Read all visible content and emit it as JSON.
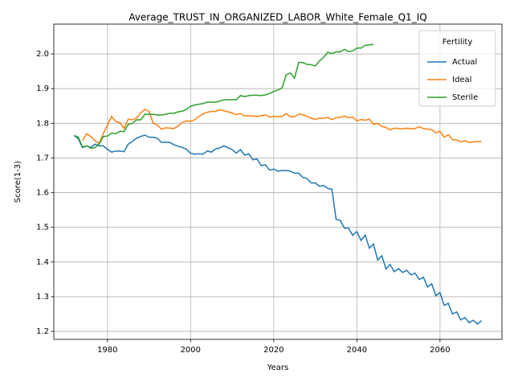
{
  "chart_data": {
    "type": "line",
    "title": "Average_TRUST_IN_ORGANIZED_LABOR_White_Female_Q1_IQ",
    "x_label": "Years",
    "y_label": "Score(1-3)",
    "legend_title": "Fertility",
    "legend": "upper right",
    "grid": true,
    "x": [
      1972,
      1973,
      1974,
      1975,
      1976,
      1977,
      1978,
      1979,
      1980,
      1981,
      1982,
      1983,
      1984,
      1985,
      1986,
      1987,
      1988,
      1989,
      1990,
      1991,
      1992,
      1993,
      1994,
      1995,
      1996,
      1997,
      1998,
      1999,
      2000,
      2001,
      2002,
      2003,
      2004,
      2005,
      2006,
      2007,
      2008,
      2009,
      2010,
      2011,
      2012,
      2013,
      2014,
      2015,
      2016,
      2017,
      2018,
      2019,
      2020,
      2021,
      2022,
      2023,
      2024,
      2025,
      2026,
      2027,
      2028,
      2029,
      2030,
      2031,
      2032,
      2033,
      2034,
      2035,
      2036,
      2037,
      2038,
      2039,
      2040,
      2041,
      2042,
      2043,
      2044,
      2045,
      2046,
      2047,
      2048,
      2049,
      2050,
      2051,
      2052,
      2053,
      2054,
      2055,
      2056,
      2057,
      2058,
      2059,
      2060,
      2061,
      2062,
      2063,
      2064,
      2065,
      2066,
      2067,
      2068,
      2069,
      2070
    ],
    "series": [
      {
        "name": "Actual",
        "color": "#1f77b4",
        "values": [
          1.765,
          1.755,
          1.73,
          1.735,
          1.73,
          1.74,
          1.735,
          1.735,
          1.725,
          1.717,
          1.72,
          1.72,
          1.718,
          1.74,
          1.748,
          1.757,
          1.762,
          1.766,
          1.76,
          1.76,
          1.757,
          1.745,
          1.745,
          1.745,
          1.738,
          1.734,
          1.731,
          1.725,
          1.714,
          1.711,
          1.712,
          1.711,
          1.72,
          1.717,
          1.726,
          1.729,
          1.735,
          1.73,
          1.724,
          1.714,
          1.724,
          1.708,
          1.712,
          1.695,
          1.697,
          1.678,
          1.68,
          1.665,
          1.668,
          1.662,
          1.664,
          1.664,
          1.662,
          1.656,
          1.656,
          1.644,
          1.641,
          1.628,
          1.628,
          1.618,
          1.621,
          1.612,
          1.61,
          1.523,
          1.52,
          1.498,
          1.498,
          1.477,
          1.488,
          1.462,
          1.478,
          1.44,
          1.452,
          1.406,
          1.418,
          1.38,
          1.393,
          1.372,
          1.381,
          1.37,
          1.376,
          1.363,
          1.368,
          1.35,
          1.356,
          1.328,
          1.337,
          1.303,
          1.312,
          1.275,
          1.281,
          1.25,
          1.256,
          1.233,
          1.24,
          1.225,
          1.232,
          1.221,
          1.231
        ]
      },
      {
        "name": "Ideal",
        "color": "#ff7f0e",
        "values": [
          null,
          null,
          1.75,
          1.77,
          1.762,
          1.75,
          1.742,
          1.77,
          1.795,
          1.82,
          1.805,
          1.802,
          1.785,
          1.812,
          1.81,
          1.815,
          1.83,
          1.84,
          1.835,
          1.8,
          1.795,
          1.783,
          1.787,
          1.786,
          1.785,
          1.792,
          1.802,
          1.807,
          1.806,
          1.81,
          1.82,
          1.827,
          1.832,
          1.834,
          1.834,
          1.839,
          1.836,
          1.833,
          1.83,
          1.825,
          1.828,
          1.821,
          1.822,
          1.821,
          1.82,
          1.822,
          1.824,
          1.818,
          1.82,
          1.819,
          1.82,
          1.828,
          1.819,
          1.819,
          1.826,
          1.825,
          1.82,
          1.815,
          1.811,
          1.815,
          1.814,
          1.817,
          1.811,
          1.816,
          1.817,
          1.821,
          1.816,
          1.818,
          1.807,
          1.811,
          1.809,
          1.812,
          1.797,
          1.8,
          1.791,
          1.788,
          1.781,
          1.786,
          1.785,
          1.784,
          1.786,
          1.784,
          1.785,
          1.79,
          1.785,
          1.783,
          1.782,
          1.773,
          1.777,
          1.76,
          1.767,
          1.753,
          1.752,
          1.746,
          1.75,
          1.745,
          1.746,
          1.747,
          1.748
        ]
      },
      {
        "name": "Sterile",
        "color": "#2ca02c",
        "values": [
          1.765,
          1.76,
          1.732,
          1.735,
          1.728,
          1.73,
          1.74,
          1.762,
          1.763,
          1.772,
          1.77,
          1.777,
          1.776,
          1.797,
          1.8,
          1.81,
          1.81,
          1.826,
          1.826,
          1.826,
          1.824,
          1.824,
          1.826,
          1.829,
          1.829,
          1.833,
          1.835,
          1.84,
          1.849,
          1.853,
          1.855,
          1.857,
          1.861,
          1.861,
          1.861,
          1.864,
          1.868,
          1.868,
          1.868,
          1.868,
          1.88,
          1.877,
          1.88,
          1.881,
          1.881,
          1.88,
          1.882,
          1.886,
          1.892,
          1.896,
          1.902,
          1.94,
          1.945,
          1.93,
          1.976,
          1.975,
          1.97,
          1.969,
          1.965,
          1.98,
          1.99,
          2.005,
          2.001,
          2.006,
          2.006,
          2.013,
          2.007,
          2.009,
          2.017,
          2.017,
          2.025,
          2.026,
          2.028,
          null,
          null,
          null,
          null,
          null,
          null,
          null,
          null,
          null,
          null,
          null,
          null,
          null,
          null,
          null,
          null,
          null,
          null,
          null,
          null,
          null,
          null,
          null,
          null,
          null,
          null
        ]
      }
    ],
    "xlim": [
      1967.1,
      2074.9
    ],
    "xticks": [
      1980,
      2000,
      2020,
      2040,
      2060
    ],
    "ylim": [
      1.177,
      2.086
    ],
    "yticks": [
      1.2,
      1.3,
      1.4,
      1.5,
      1.6,
      1.7,
      1.8,
      1.9,
      {
        "value": 2,
        "label": "2.0"
      }
    ]
  }
}
